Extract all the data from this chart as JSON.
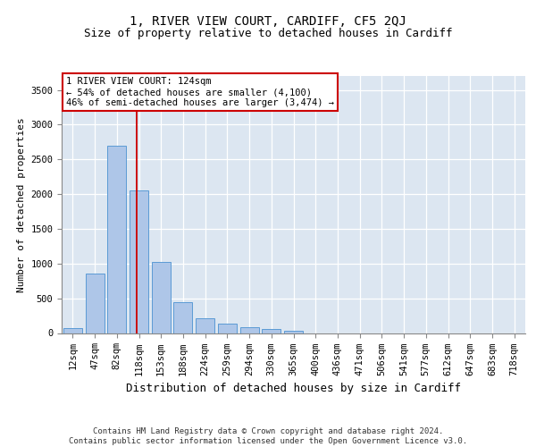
{
  "title": "1, RIVER VIEW COURT, CARDIFF, CF5 2QJ",
  "subtitle": "Size of property relative to detached houses in Cardiff",
  "xlabel": "Distribution of detached houses by size in Cardiff",
  "ylabel": "Number of detached properties",
  "categories": [
    "12sqm",
    "47sqm",
    "82sqm",
    "118sqm",
    "153sqm",
    "188sqm",
    "224sqm",
    "259sqm",
    "294sqm",
    "330sqm",
    "365sqm",
    "400sqm",
    "436sqm",
    "471sqm",
    "506sqm",
    "541sqm",
    "577sqm",
    "612sqm",
    "647sqm",
    "683sqm",
    "718sqm"
  ],
  "values": [
    65,
    850,
    2700,
    2050,
    1020,
    450,
    210,
    140,
    80,
    60,
    35,
    0,
    0,
    0,
    0,
    0,
    0,
    0,
    0,
    0,
    0
  ],
  "bar_color": "#aec6e8",
  "bar_edge_color": "#5b9bd5",
  "background_color": "#dce6f1",
  "annotation_text": "1 RIVER VIEW COURT: 124sqm\n← 54% of detached houses are smaller (4,100)\n46% of semi-detached houses are larger (3,474) →",
  "annotation_box_color": "#ffffff",
  "annotation_box_edge": "#cc0000",
  "vline_color": "#cc0000",
  "ylim": [
    0,
    3700
  ],
  "yticks": [
    0,
    500,
    1000,
    1500,
    2000,
    2500,
    3000,
    3500
  ],
  "footer": "Contains HM Land Registry data © Crown copyright and database right 2024.\nContains public sector information licensed under the Open Government Licence v3.0.",
  "title_fontsize": 10,
  "subtitle_fontsize": 9,
  "xlabel_fontsize": 9,
  "ylabel_fontsize": 8,
  "tick_fontsize": 7.5,
  "annotation_fontsize": 7.5,
  "footer_fontsize": 6.5
}
